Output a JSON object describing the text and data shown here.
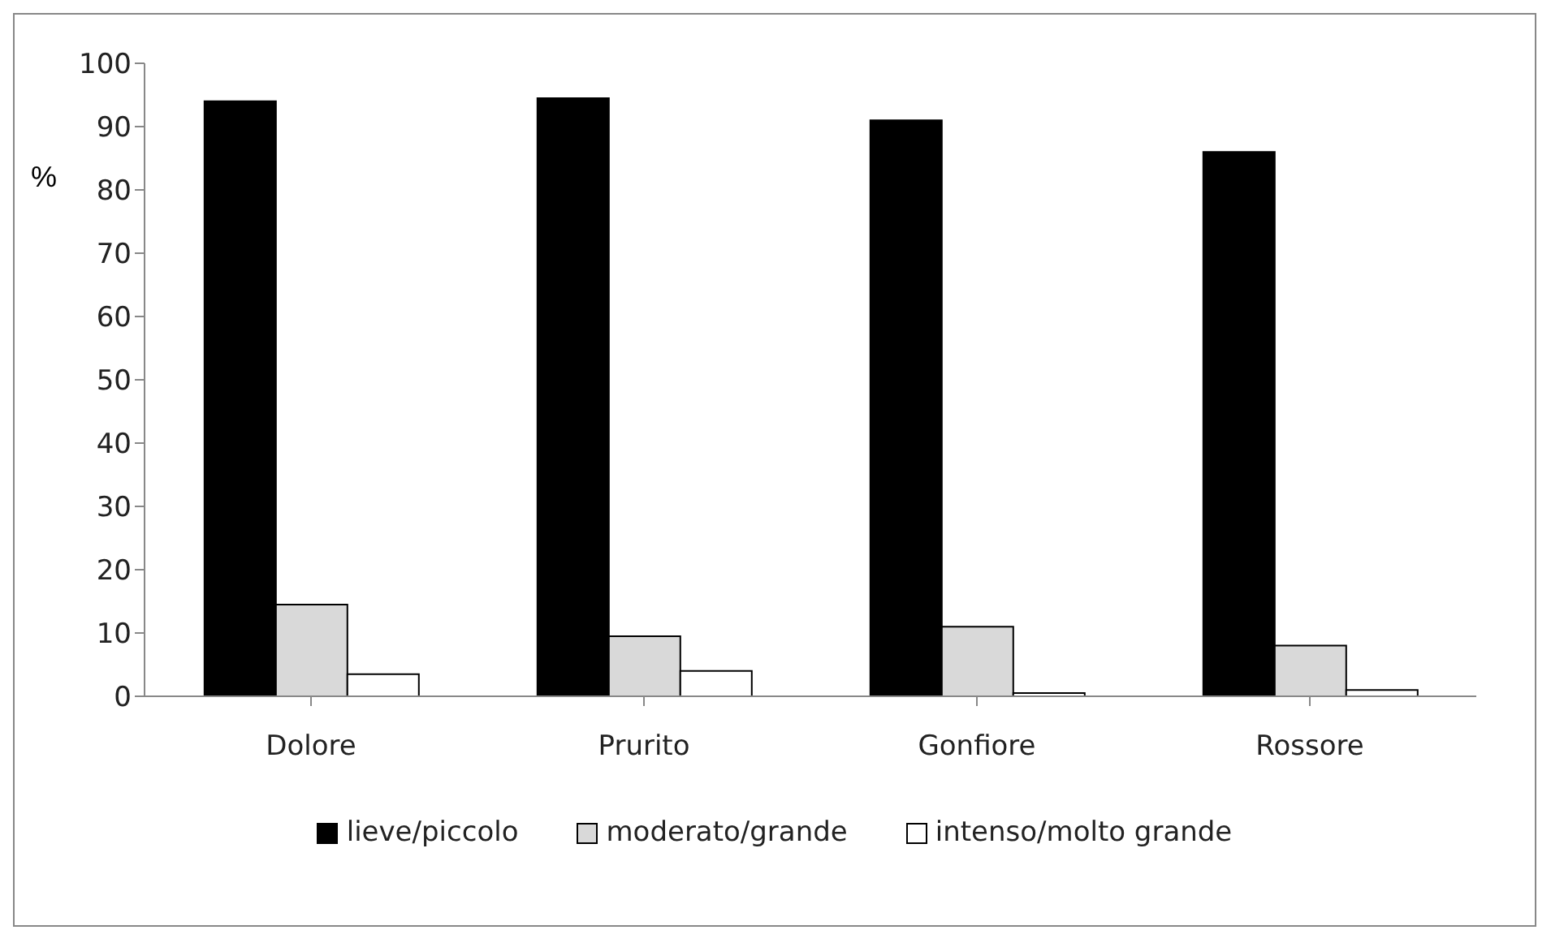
{
  "chart_data": {
    "type": "bar",
    "ylabel": "%",
    "categories": [
      "Dolore",
      "Prurito",
      "Gonfiore",
      "Rossore"
    ],
    "series": [
      {
        "name": "lieve/piccolo",
        "color": "#000000",
        "values": [
          94,
          94.5,
          91,
          86
        ]
      },
      {
        "name": "moderato/grande",
        "color": "#d9d9d9",
        "values": [
          14.5,
          9.5,
          11,
          8
        ]
      },
      {
        "name": "intenso/molto grande",
        "color": "#ffffff",
        "values": [
          3.5,
          4,
          0.5,
          1
        ]
      }
    ],
    "ylim": [
      0,
      100
    ],
    "yticks": [
      0,
      10,
      20,
      30,
      40,
      50,
      60,
      70,
      80,
      90,
      100
    ],
    "grid": false,
    "legend": "bottom"
  }
}
